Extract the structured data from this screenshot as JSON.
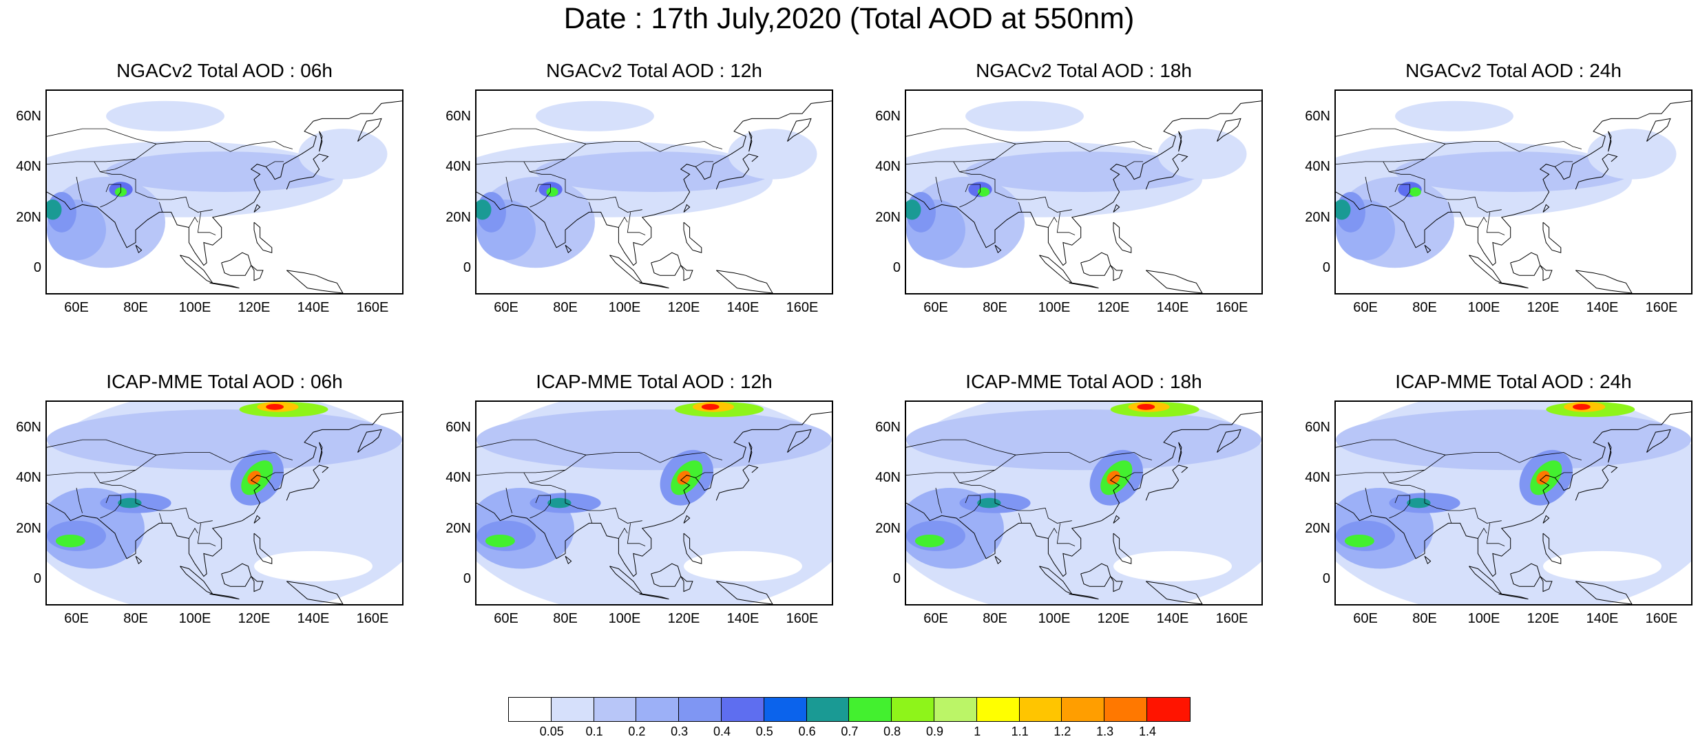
{
  "title": "Date : 17th July,2020 (Total AOD at 550nm)",
  "panels": [
    {
      "title": "NGACv2 Total AOD : 06h",
      "model": "ngac",
      "lead": "06h"
    },
    {
      "title": "NGACv2 Total AOD : 12h",
      "model": "ngac",
      "lead": "12h"
    },
    {
      "title": "NGACv2 Total AOD : 18h",
      "model": "ngac",
      "lead": "18h"
    },
    {
      "title": "NGACv2 Total AOD : 24h",
      "model": "ngac",
      "lead": "24h"
    },
    {
      "title": "ICAP-MME Total AOD : 06h",
      "model": "icap",
      "lead": "06h"
    },
    {
      "title": "ICAP-MME Total AOD : 12h",
      "model": "icap",
      "lead": "12h"
    },
    {
      "title": "ICAP-MME Total AOD : 18h",
      "model": "icap",
      "lead": "18h"
    },
    {
      "title": "ICAP-MME Total AOD : 24h",
      "model": "icap",
      "lead": "24h"
    }
  ],
  "axes": {
    "lat_ticks": [
      "60N",
      "40N",
      "20N",
      "0"
    ],
    "lon_ticks": [
      "60E",
      "80E",
      "100E",
      "120E",
      "140E",
      "160E"
    ]
  },
  "colorbar": {
    "labels": [
      "0.05",
      "0.1",
      "0.2",
      "0.3",
      "0.4",
      "0.5",
      "0.6",
      "0.7",
      "0.8",
      "0.9",
      "1",
      "1.1",
      "1.2",
      "1.3",
      "1.4"
    ],
    "colors": [
      "#ffffff",
      "#d6e0fb",
      "#b8c6f8",
      "#9cb0f7",
      "#7f96f3",
      "#5e6ef0",
      "#0b63ec",
      "#1a9a94",
      "#43f02f",
      "#8ef41a",
      "#bbf567",
      "#ffff00",
      "#ffc500",
      "#ff9e00",
      "#ff7800",
      "#ff1400"
    ]
  },
  "map_extent": {
    "lon": [
      50,
      170
    ],
    "lat": [
      -10,
      70
    ]
  }
}
